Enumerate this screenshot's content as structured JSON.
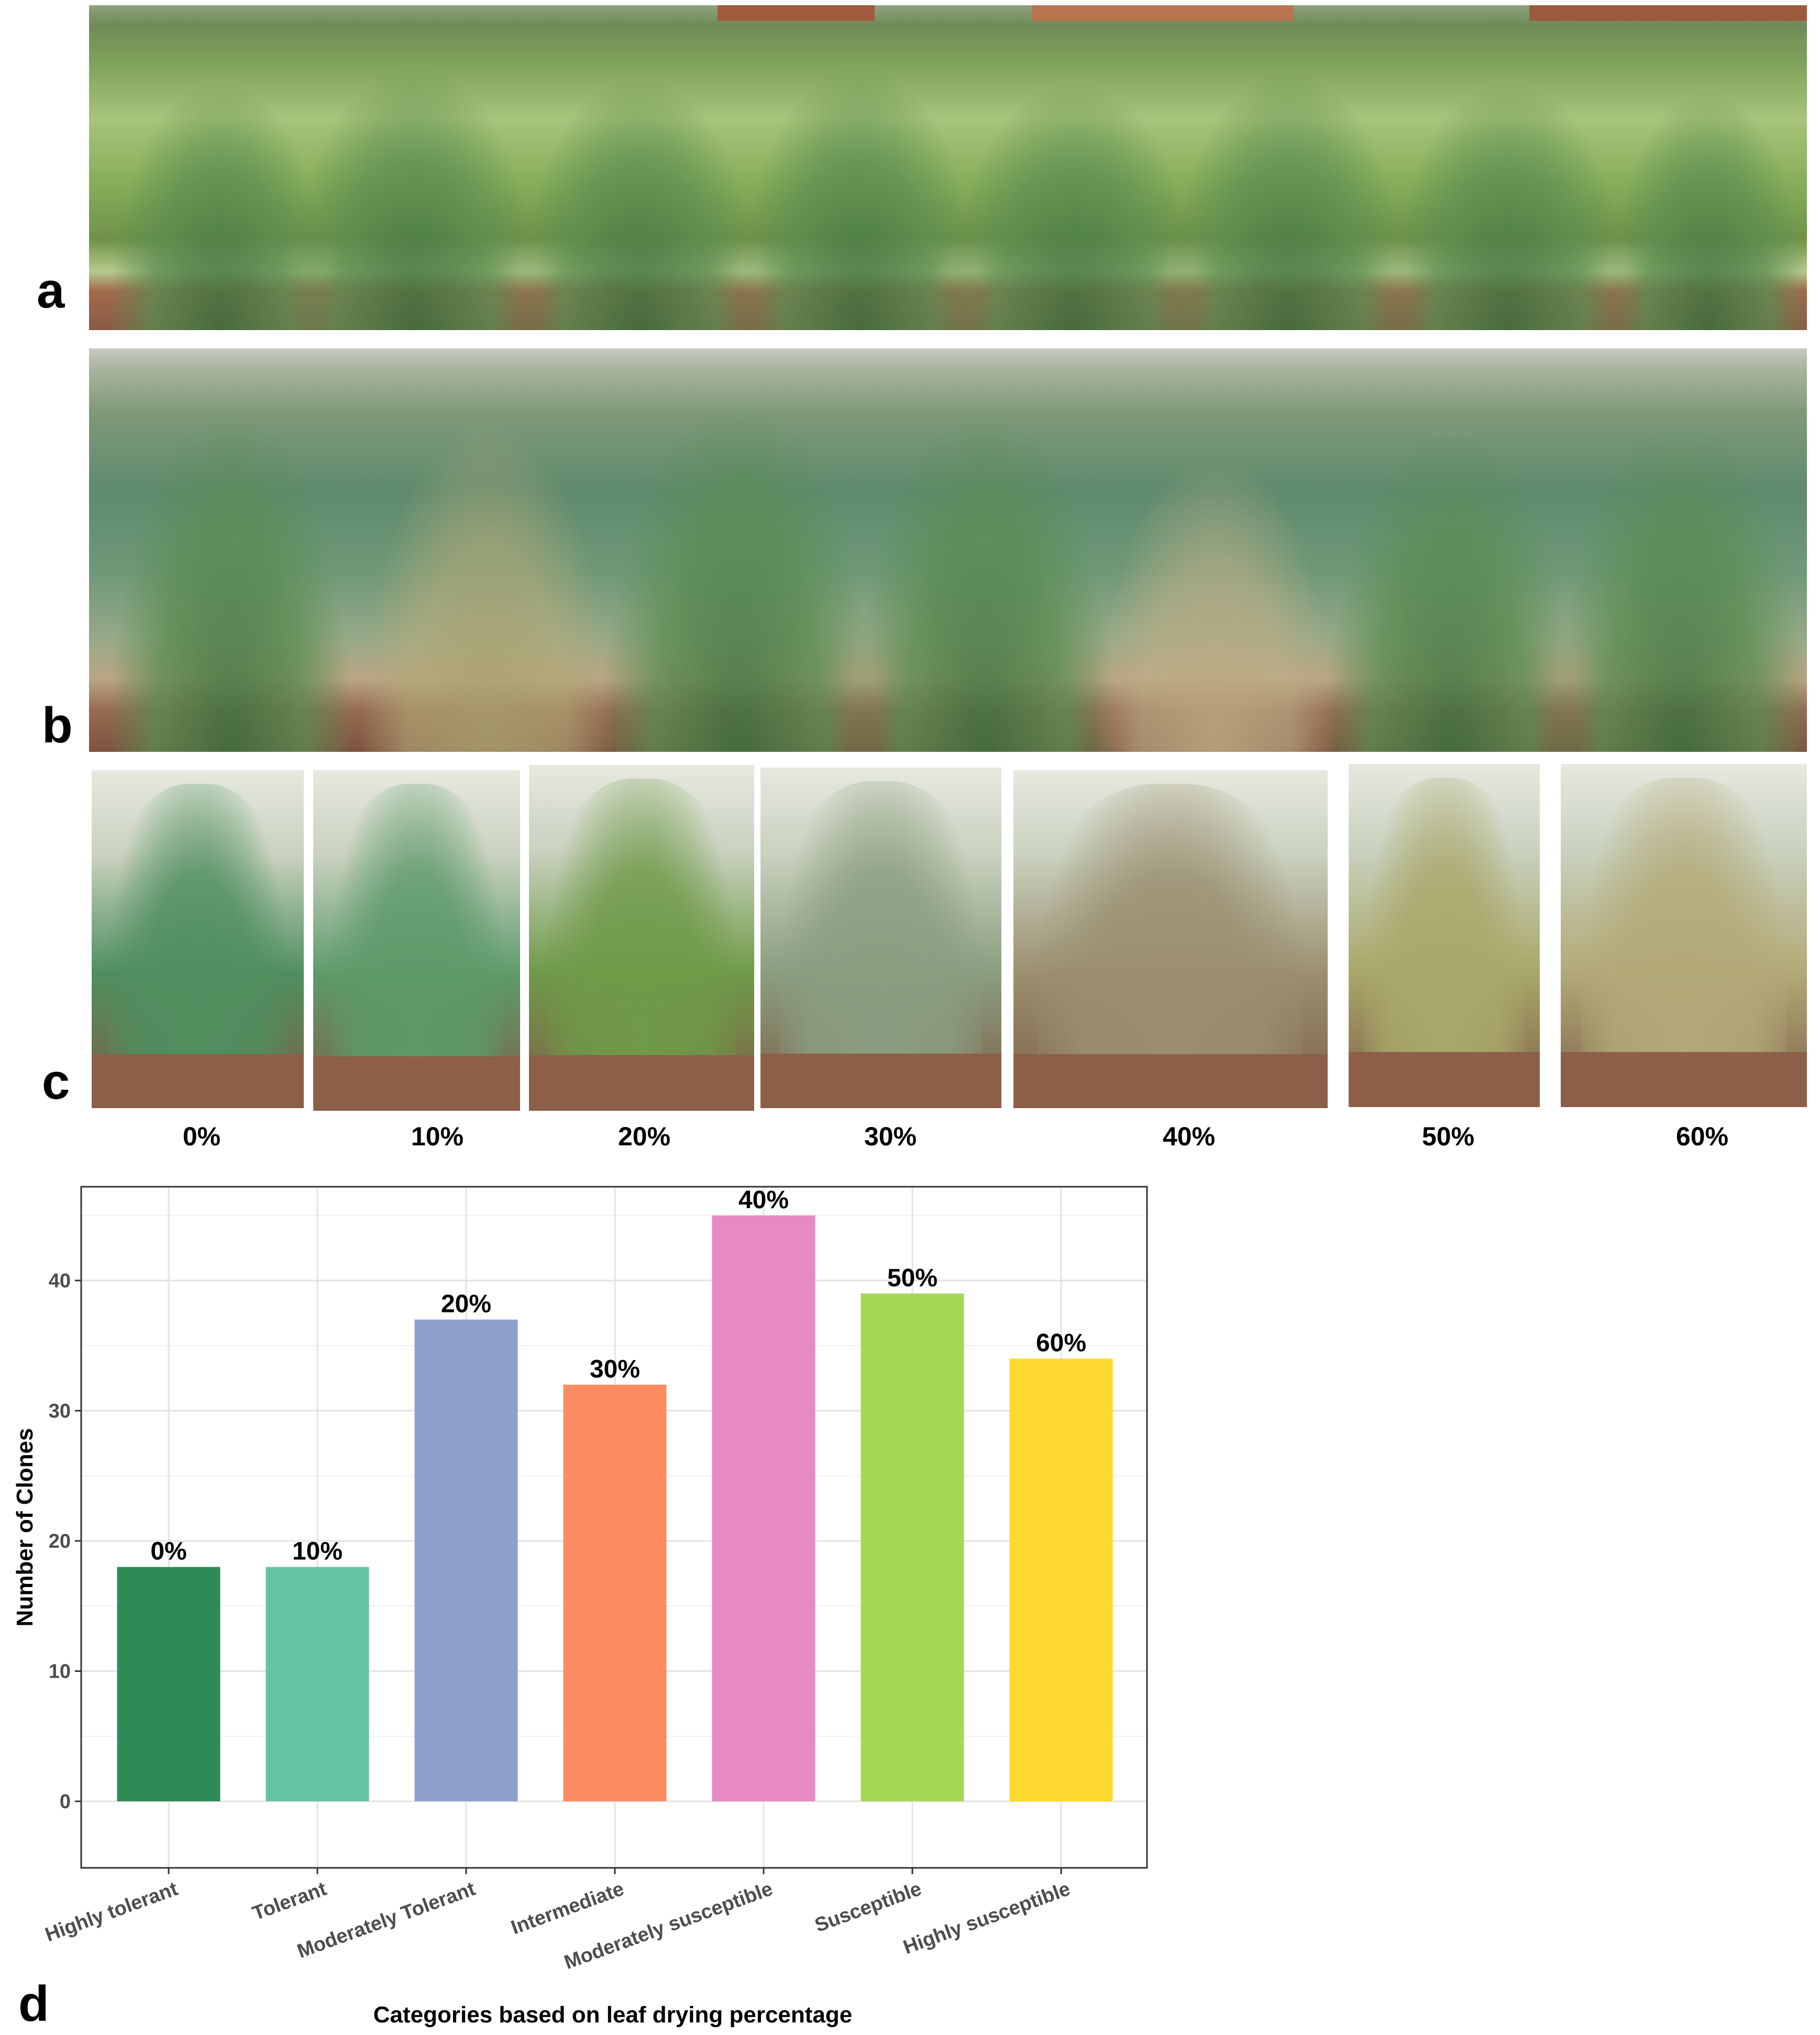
{
  "panels": {
    "a": "a",
    "b": "b",
    "c": "c",
    "d": "d"
  },
  "panel_c_labels": [
    "0%",
    "10%",
    "20%",
    "30%",
    "40%",
    "50%",
    "60%"
  ],
  "panel_c_tints": [
    "#4f8f5f",
    "#5d9a6a",
    "#6f9a48",
    "#8a9e80",
    "#9b8f70",
    "#a9a86a",
    "#b3aa78"
  ],
  "chart_data": {
    "type": "bar",
    "categories": [
      "Highly tolerant",
      "Tolerant",
      "Moderately Tolerant",
      "Intermediate",
      "Moderately susceptible",
      "Susceptible",
      "Highly susceptible"
    ],
    "values": [
      18,
      18,
      37,
      32,
      45,
      39,
      34
    ],
    "data_labels": [
      "0%",
      "10%",
      "20%",
      "30%",
      "40%",
      "50%",
      "60%"
    ],
    "colors": [
      "#2e8b57",
      "#66c2a5",
      "#8da0cb",
      "#fc8d62",
      "#e78ac3",
      "#a6d854",
      "#ffd92f"
    ],
    "xlabel": "Categories based on leaf drying percentage",
    "ylabel": "Number of Clones",
    "yticks": [
      0,
      10,
      20,
      30,
      40
    ],
    "ylim": [
      0,
      46
    ],
    "grid": true
  }
}
